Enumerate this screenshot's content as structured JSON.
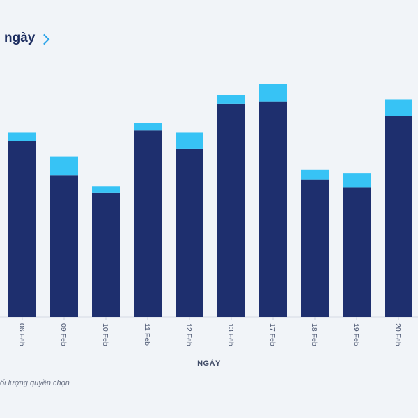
{
  "header": {
    "title": "ngày",
    "chevron_icon": "chevron-right-icon"
  },
  "chart_data": {
    "type": "bar",
    "stacked": true,
    "categories": [
      "06 Feb",
      "09 Feb",
      "10 Feb",
      "11 Feb",
      "12 Feb",
      "13 Feb",
      "17 Feb",
      "18 Feb",
      "19 Feb",
      "20 Feb"
    ],
    "series": [
      {
        "name": "",
        "color": "#1e2f6e",
        "values": [
          237,
          191,
          167,
          251,
          226,
          287,
          290,
          185,
          174,
          270
        ]
      },
      {
        "name": "lượng quyền chọn",
        "color": "#37c3f5",
        "values": [
          11,
          25,
          9,
          10,
          22,
          12,
          24,
          13,
          19,
          23
        ]
      }
    ],
    "xlabel": "NGÀY",
    "ylabel": "",
    "ylim": [
      0,
      300
    ],
    "grid": false
  },
  "legend_text": "ối lượng quyền chọn"
}
